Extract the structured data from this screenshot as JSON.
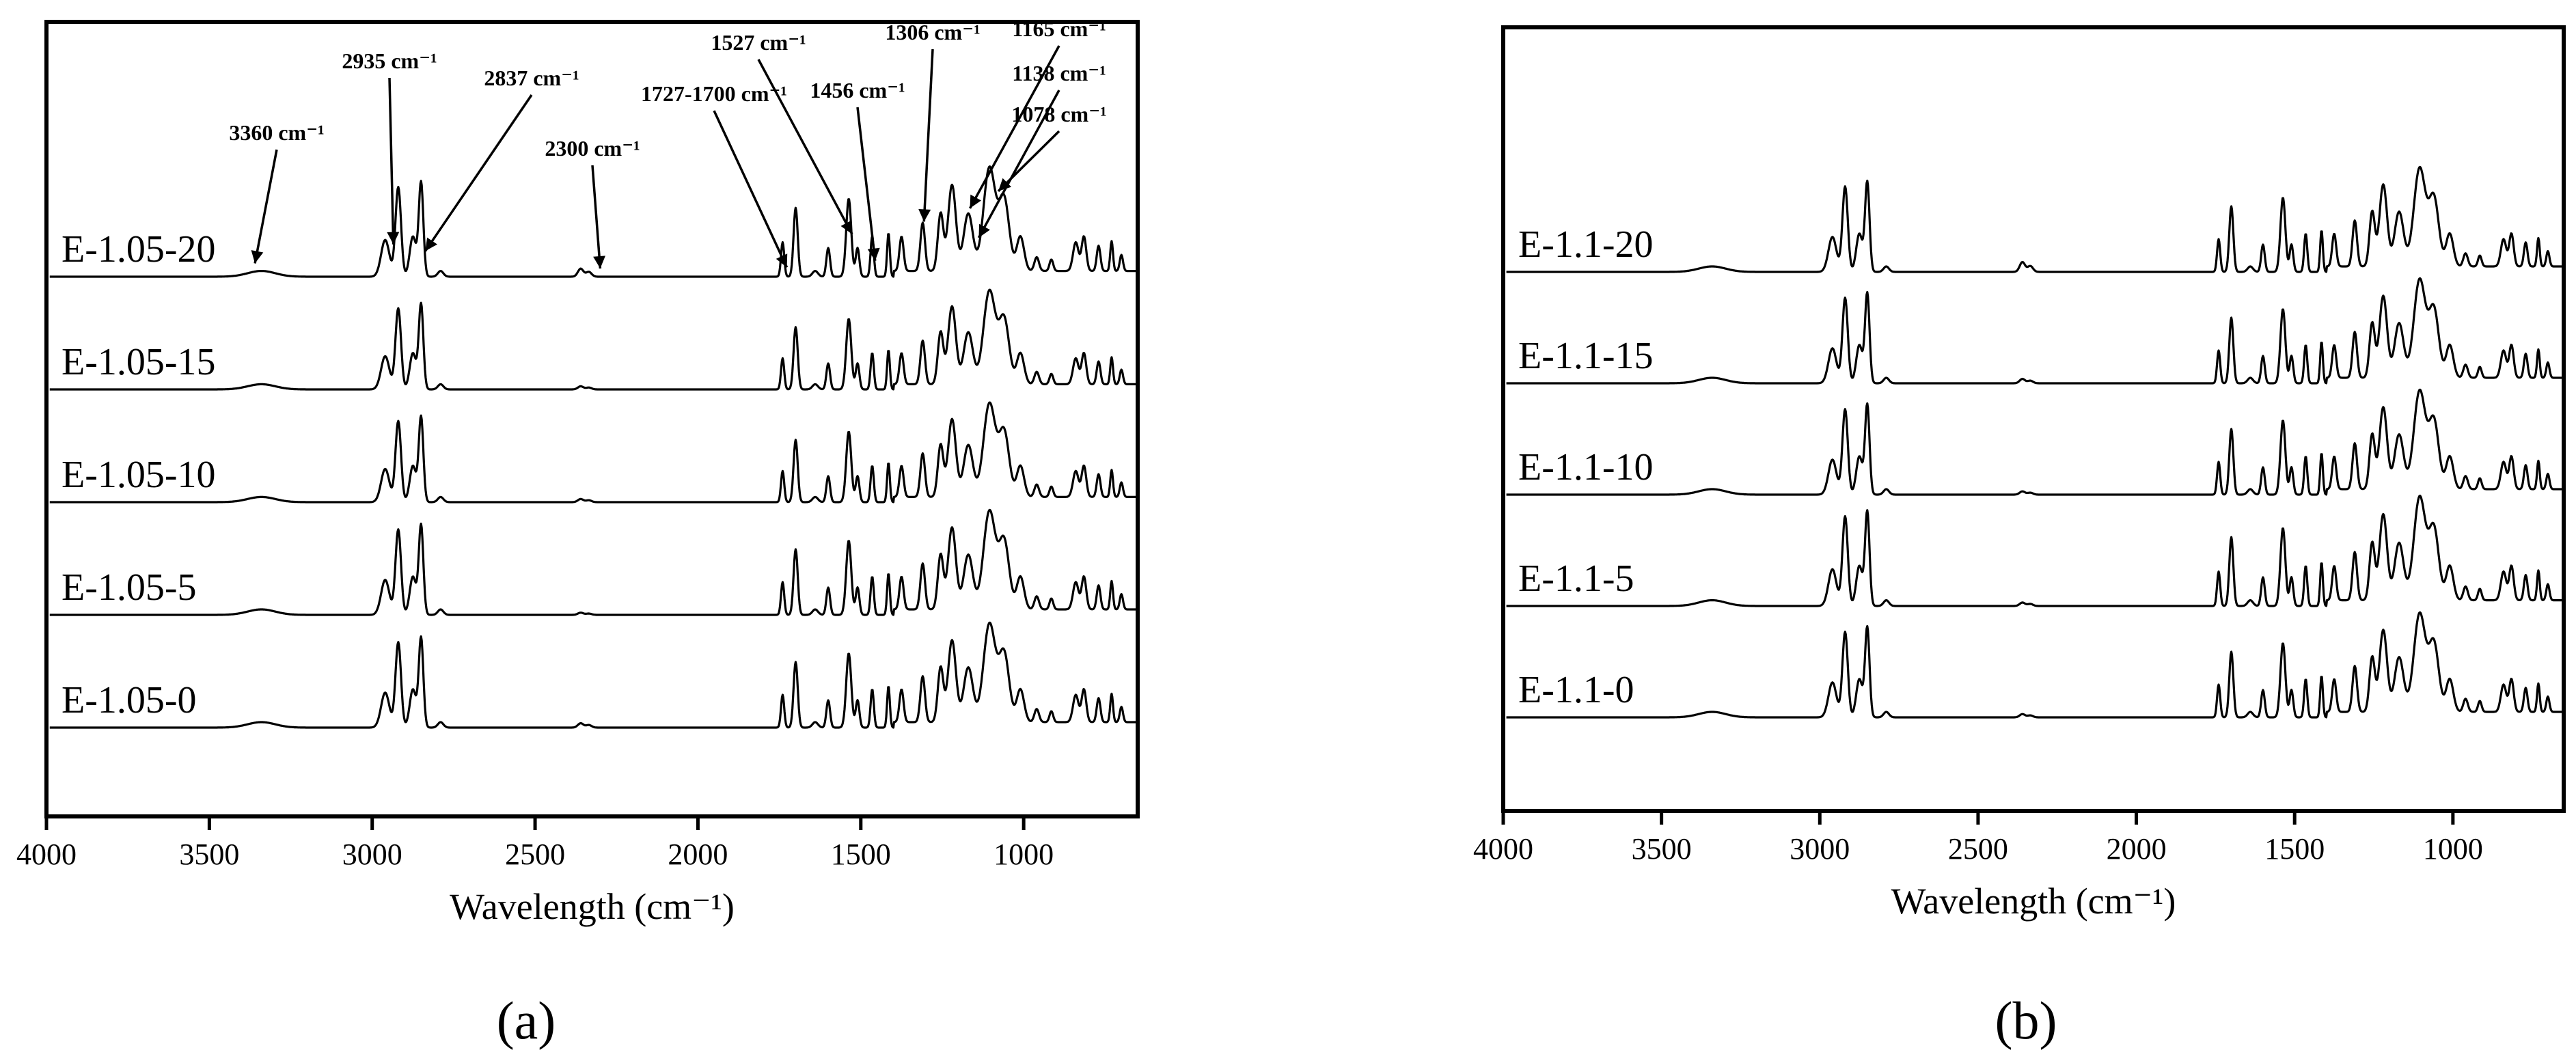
{
  "figure": {
    "panel_a_label": "(a)",
    "panel_b_label": "(b)",
    "annotation_arrow_color": "#000000",
    "trace_color": "#000000"
  },
  "chart_data": [
    {
      "type": "line",
      "panel": "a",
      "xlabel": "Wavelength (cm-1)",
      "xlim": [
        4000,
        650
      ],
      "x_reversed": true,
      "x_ticks": [
        4000,
        3500,
        3000,
        2500,
        2000,
        1500,
        1000
      ],
      "y_ticks_shown": false,
      "legend": "none (trace labels on left)",
      "series": [
        {
          "name": "E-1.05-20",
          "stack_offset": 4,
          "scale": 1.05,
          "h2300": 0.07
        },
        {
          "name": "E-1.05-15",
          "stack_offset": 3,
          "scale": 0.95,
          "h2300": 0.03
        },
        {
          "name": "E-1.05-10",
          "stack_offset": 2,
          "scale": 0.95,
          "h2300": 0.03
        },
        {
          "name": "E-1.05-5",
          "stack_offset": 1,
          "scale": 1.0,
          "h2300": 0.02
        },
        {
          "name": "E-1.05-0",
          "stack_offset": 0,
          "scale": 1.0,
          "h2300": 0.04
        }
      ],
      "annotations": [
        {
          "text": "3360 cm-1",
          "x": 3360
        },
        {
          "text": "2935 cm-1",
          "x": 2935
        },
        {
          "text": "2837 cm-1",
          "x": 2837
        },
        {
          "text": "2300 cm-1",
          "x": 2300
        },
        {
          "text": "1727-1700 cm-1",
          "x": 1727
        },
        {
          "text": "1527 cm-1",
          "x": 1527
        },
        {
          "text": "1456 cm-1",
          "x": 1456
        },
        {
          "text": "1306 cm-1",
          "x": 1306
        },
        {
          "text": "1165 cm-1",
          "x": 1165
        },
        {
          "text": "1138 cm-1",
          "x": 1138
        },
        {
          "text": "1078 cm-1",
          "x": 1078
        }
      ]
    },
    {
      "type": "line",
      "panel": "b",
      "xlabel": "Wavelength (cm-1)",
      "xlim": [
        4000,
        650
      ],
      "x_reversed": true,
      "x_ticks": [
        4000,
        3500,
        3000,
        2500,
        2000,
        1500,
        1000
      ],
      "y_ticks_shown": false,
      "legend": "none (trace labels on left)",
      "series": [
        {
          "name": "E-1.1-20",
          "stack_offset": 4,
          "scale": 1.0,
          "h2300": 0.09
        },
        {
          "name": "E-1.1-15",
          "stack_offset": 3,
          "scale": 1.0,
          "h2300": 0.04
        },
        {
          "name": "E-1.1-10",
          "stack_offset": 2,
          "scale": 1.0,
          "h2300": 0.03
        },
        {
          "name": "E-1.1-5",
          "stack_offset": 1,
          "scale": 1.05,
          "h2300": 0.03
        },
        {
          "name": "E-1.1-0",
          "stack_offset": 0,
          "scale": 1.0,
          "h2300": 0.03
        }
      ]
    }
  ]
}
